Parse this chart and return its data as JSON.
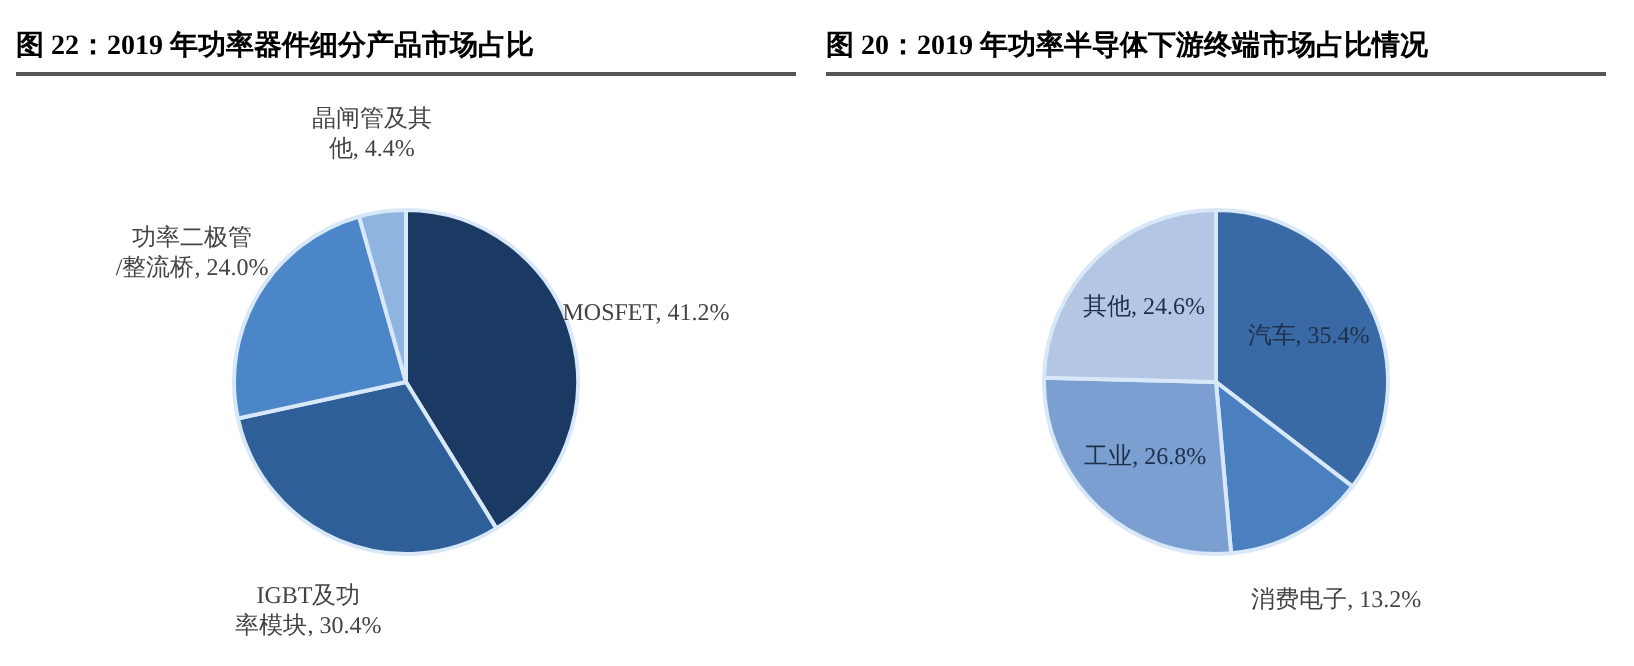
{
  "chart_data": [
    {
      "type": "pie",
      "title": "图 22：2019 年功率器件细分产品市场占比",
      "categories": [
        "MOSFET",
        "IGBT及功率模块",
        "功率二极管/整流桥",
        "晶闸管及其他"
      ],
      "values": [
        41.2,
        30.4,
        24.0,
        4.4
      ],
      "value_labels": [
        "41.2%",
        "30.4%",
        "24.0%",
        "4.4%"
      ],
      "colors": [
        "#1b3a63",
        "#2f5f99",
        "#4a86c8",
        "#8fb4e0"
      ]
    },
    {
      "type": "pie",
      "title": "图 20：2019 年功率半导体下游终端市场占比情况",
      "categories": [
        "汽车",
        "消费电子",
        "工业",
        "其他"
      ],
      "values": [
        35.4,
        13.2,
        26.8,
        24.6
      ],
      "value_labels": [
        "35.4%",
        "13.2%",
        "26.8%",
        "24.6%"
      ],
      "colors": [
        "#3a6aa5",
        "#4a80c0",
        "#7a9fd0",
        "#b3c6e3"
      ]
    }
  ]
}
